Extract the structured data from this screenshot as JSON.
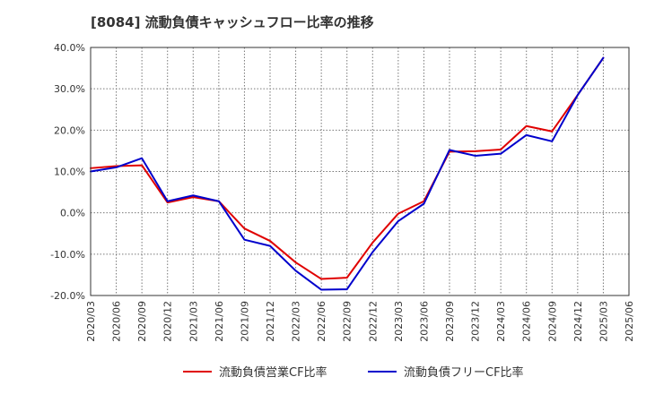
{
  "chart_data": {
    "type": "line",
    "title": "[8084]  流動負債キャッシュフロー比率の推移",
    "xlabel": "",
    "ylabel": "",
    "ylim": [
      -20,
      40
    ],
    "yticks": [
      -20,
      -10,
      0,
      10,
      20,
      30,
      40
    ],
    "ytick_labels": [
      "-20.0%",
      "-10.0%",
      "0.0%",
      "10.0%",
      "20.0%",
      "30.0%",
      "40.0%"
    ],
    "grid": true,
    "legend_position": "bottom",
    "categories": [
      "2020/03",
      "2020/06",
      "2020/09",
      "2020/12",
      "2021/03",
      "2021/06",
      "2021/09",
      "2021/12",
      "2022/03",
      "2022/06",
      "2022/09",
      "2022/12",
      "2023/03",
      "2023/06",
      "2023/09",
      "2023/12",
      "2024/03",
      "2024/06",
      "2024/09",
      "2024/12",
      "2025/03",
      "2025/06"
    ],
    "series": [
      {
        "name": "流動負債営業CF比率",
        "color": "#e00000",
        "values": [
          10.8,
          11.3,
          11.5,
          2.5,
          3.8,
          2.8,
          -3.8,
          -6.8,
          -12.0,
          -16.0,
          -15.7,
          -7.2,
          -0.2,
          2.8,
          14.8,
          14.9,
          15.3,
          21.0,
          19.7,
          28.5,
          37.5,
          null
        ]
      },
      {
        "name": "流動負債フリーCF比率",
        "color": "#0000cc",
        "values": [
          10.0,
          11.0,
          13.2,
          2.8,
          4.2,
          2.8,
          -6.5,
          -8.0,
          -14.0,
          -18.6,
          -18.5,
          -9.5,
          -2.0,
          2.2,
          15.2,
          13.8,
          14.3,
          18.8,
          17.3,
          28.5,
          37.5,
          null
        ]
      }
    ]
  }
}
